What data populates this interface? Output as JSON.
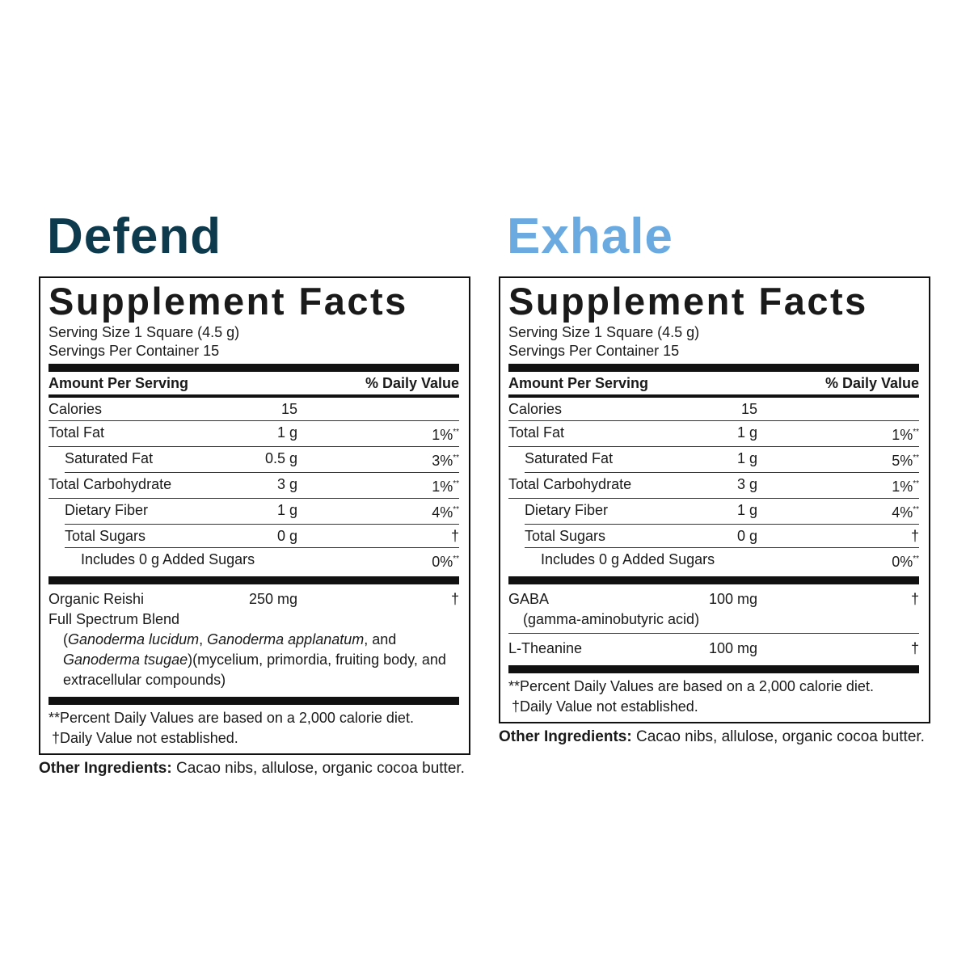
{
  "panels": [
    {
      "product": "Defend",
      "product_color": "#0e3a4e",
      "title": "Supplement Facts",
      "serving_size": "Serving Size 1 Square (4.5 g)",
      "servings_per_container": "Servings Per Container 15",
      "amount_header": "Amount Per Serving",
      "dv_header": "% Daily Value",
      "rows": [
        {
          "name": "Calories",
          "amount": "15",
          "level": 0
        },
        {
          "name": "Total Fat",
          "amount": "1 g",
          "dv": "1%",
          "dv_mark": "**",
          "level": 0
        },
        {
          "name": "Saturated Fat",
          "amount": "0.5 g",
          "dv": "3%",
          "dv_mark": "**",
          "level": 1
        },
        {
          "name": "Total Carbohydrate",
          "amount": "3 g",
          "dv": "1%",
          "dv_mark": "**",
          "level": 0
        },
        {
          "name": "Dietary Fiber",
          "amount": "1 g",
          "dv": "4%",
          "dv_mark": "**",
          "level": 1
        },
        {
          "name": "Total Sugars",
          "amount": "0 g",
          "dv": "†",
          "level": 1
        },
        {
          "name": "Includes 0 g Added Sugars",
          "dv": "0%",
          "dv_mark": "**",
          "level": 2
        }
      ],
      "ingredients": [
        {
          "name": "Organic Reishi",
          "amount": "250 mg",
          "dv": "†",
          "note": "Full Spectrum Blend",
          "description": [
            {
              "text": "("
            },
            {
              "text": "Ganoderma lucidum",
              "italic": true
            },
            {
              "text": ", "
            },
            {
              "text": "Ganoderma applanatum",
              "italic": true
            },
            {
              "text": ", and "
            },
            {
              "text": "Ganoderma tsugae",
              "italic": true
            },
            {
              "text": ")(mycelium, primordia, fruiting body, and extracellular compounds)"
            }
          ]
        }
      ],
      "footnotes": [
        "**Percent Daily Values are based on a 2,000 calorie diet.",
        "†Daily Value not established."
      ],
      "other_label": "Other Ingredients:",
      "other_text": "Cacao nibs, allulose, organic cocoa butter."
    },
    {
      "product": "Exhale",
      "product_color": "#6aaae0",
      "title": "Supplement Facts",
      "serving_size": "Serving Size 1 Square (4.5 g)",
      "servings_per_container": "Servings Per Container 15",
      "amount_header": "Amount Per Serving",
      "dv_header": "% Daily Value",
      "rows": [
        {
          "name": "Calories",
          "amount": "15",
          "level": 0
        },
        {
          "name": "Total Fat",
          "amount": "1 g",
          "dv": "1%",
          "dv_mark": "**",
          "level": 0
        },
        {
          "name": "Saturated Fat",
          "amount": "1 g",
          "dv": "5%",
          "dv_mark": "**",
          "level": 1
        },
        {
          "name": "Total Carbohydrate",
          "amount": "3 g",
          "dv": "1%",
          "dv_mark": "**",
          "level": 0
        },
        {
          "name": "Dietary Fiber",
          "amount": "1 g",
          "dv": "4%",
          "dv_mark": "**",
          "level": 1
        },
        {
          "name": "Total Sugars",
          "amount": "0 g",
          "dv": "†",
          "level": 1
        },
        {
          "name": "Includes 0 g Added Sugars",
          "dv": "0%",
          "dv_mark": "**",
          "level": 2
        }
      ],
      "ingredients": [
        {
          "name": "GABA",
          "amount": "100 mg",
          "dv": "†",
          "note": "(gamma-aminobutyric acid)"
        },
        {
          "name": "L-Theanine",
          "amount": "100 mg",
          "dv": "†"
        }
      ],
      "footnotes": [
        "**Percent Daily Values are based on a 2,000 calorie diet.",
        "†Daily Value not established."
      ],
      "other_label": "Other Ingredients:",
      "other_text": "Cacao nibs, allulose, organic cocoa butter."
    }
  ]
}
